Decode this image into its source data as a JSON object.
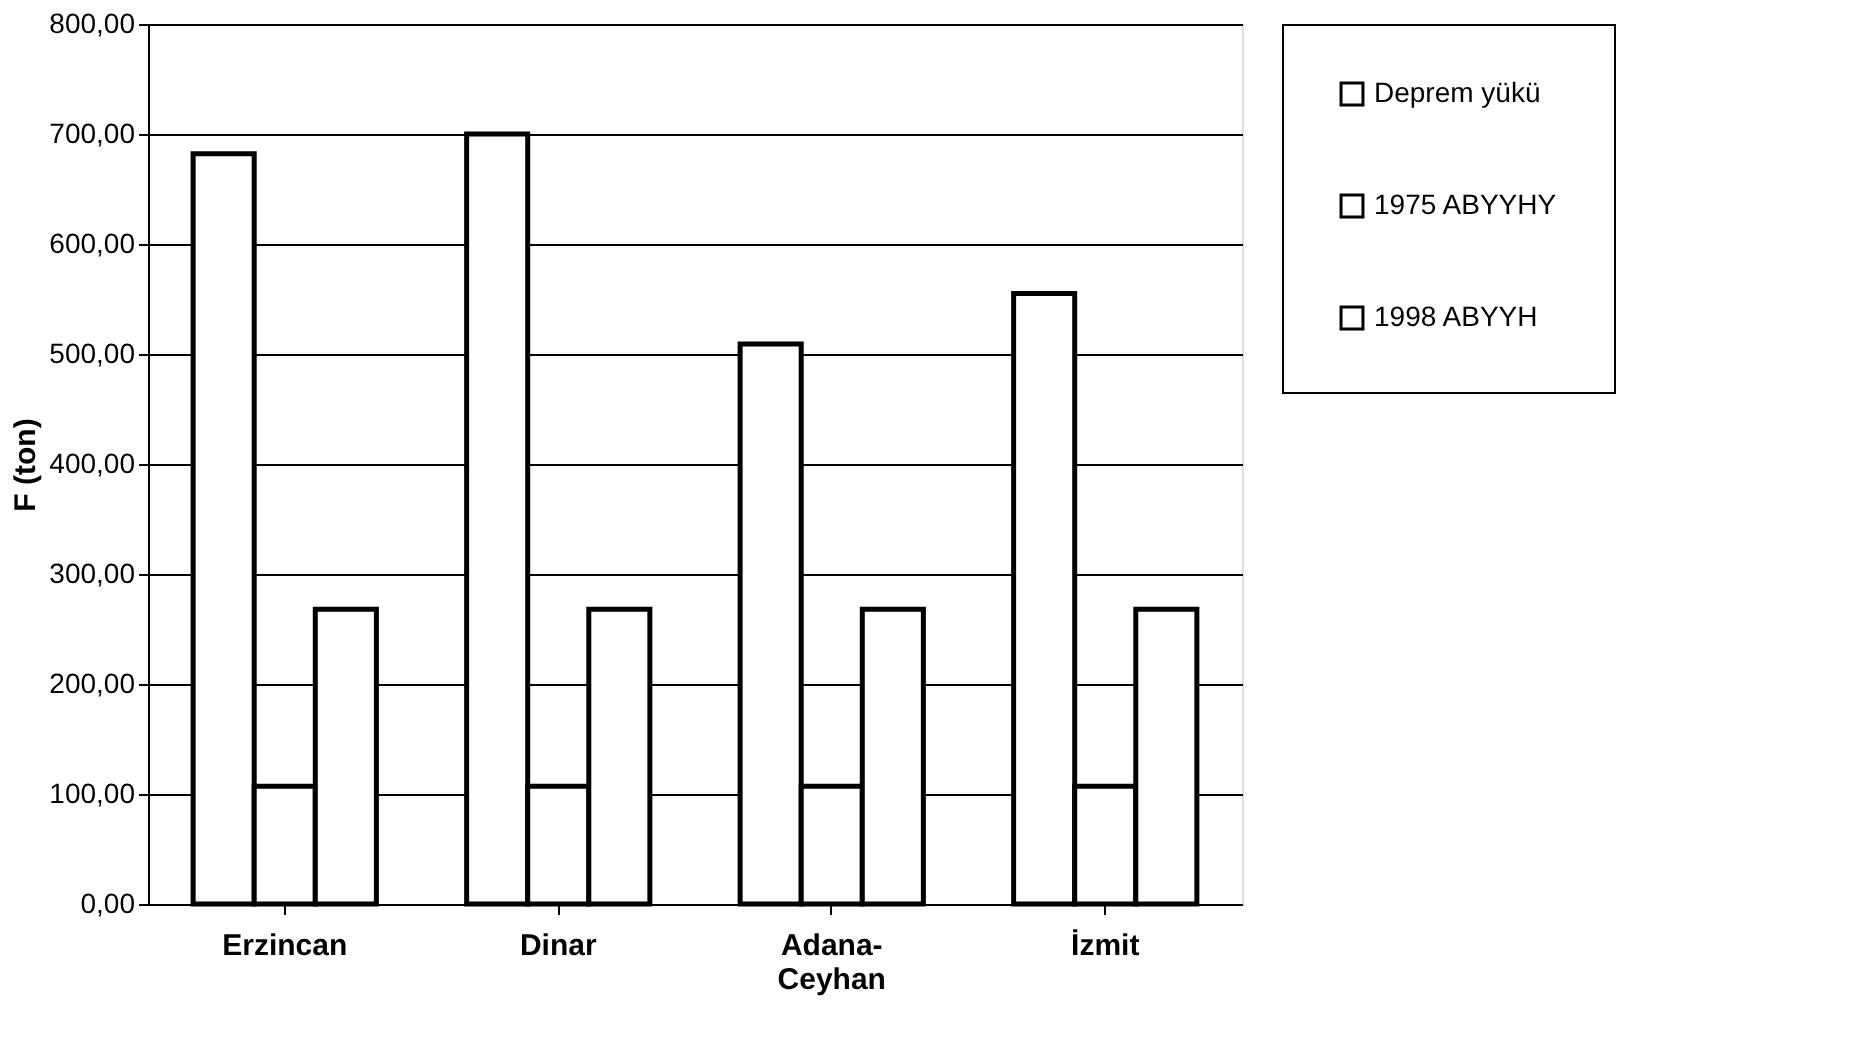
{
  "chart_data": {
    "type": "bar",
    "ylabel": "F (ton)",
    "categories": [
      "Erzincan",
      "Dinar",
      "Adana-Ceyhan",
      "İzmit"
    ],
    "series": [
      {
        "name": "Deprem yükü",
        "color": "#ffffff",
        "values": [
          682,
          700,
          509,
          555
        ]
      },
      {
        "name": "1975 ABYYHY",
        "color": "#ffffff",
        "values": [
          107,
          107,
          107,
          107
        ]
      },
      {
        "name": "1998 ABYYH",
        "color": "#ffffff",
        "values": [
          268,
          268,
          268,
          268
        ]
      }
    ],
    "ylim": [
      0,
      800
    ],
    "yticks": [
      {
        "value": 0,
        "label": "0,00"
      },
      {
        "value": 100,
        "label": "100,00"
      },
      {
        "value": 200,
        "label": "200,00"
      },
      {
        "value": 300,
        "label": "300,00"
      },
      {
        "value": 400,
        "label": "400,00"
      },
      {
        "value": 500,
        "label": "500,00"
      },
      {
        "value": 600,
        "label": "600,00"
      },
      {
        "value": 700,
        "label": "700,00"
      },
      {
        "value": 800,
        "label": "800,00"
      }
    ],
    "grid": "y",
    "legend": "right"
  }
}
